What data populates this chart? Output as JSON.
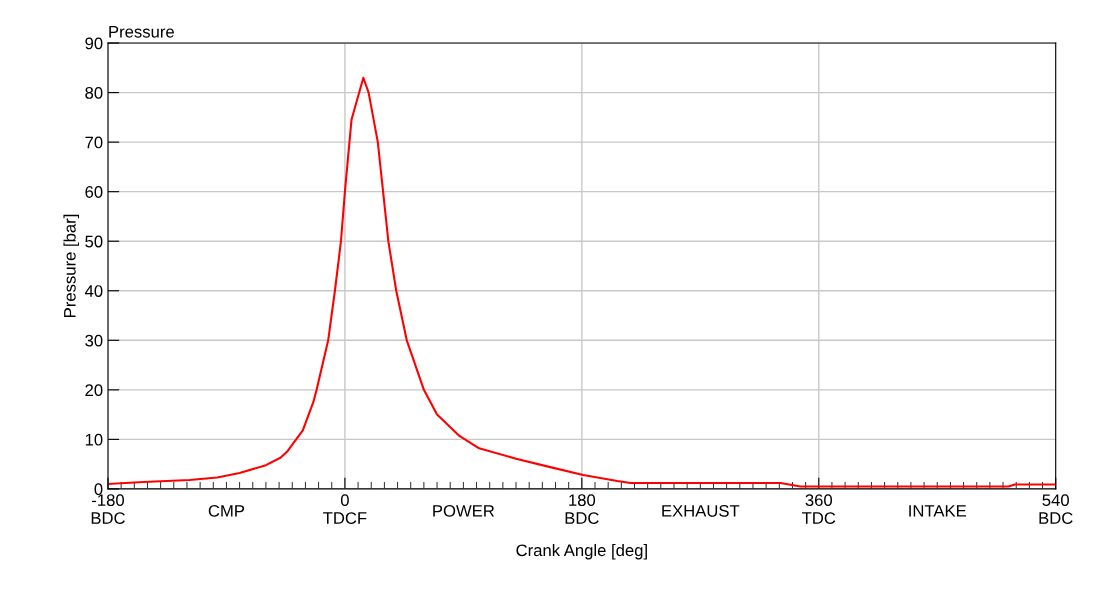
{
  "chart_data": {
    "type": "line",
    "title": "Pressure",
    "xlabel": "Crank Angle [deg]",
    "ylabel": "Pressure [bar]",
    "annotations": [
      "CMP",
      "POWER",
      "EXHAUST",
      "INTAKE"
    ],
    "series": [
      {
        "color": "#ff0000",
        "x": [
          -180,
          -153,
          -118,
          -97,
          -80,
          -60,
          -49,
          -44,
          -32,
          -24,
          -21.5,
          -12.7,
          -7.6,
          -3,
          0,
          5,
          14,
          18,
          25,
          29,
          33,
          39,
          47,
          60,
          70,
          87,
          102,
          130,
          156,
          181,
          207,
          217,
          331,
          346,
          504,
          509,
          540
        ],
        "values": [
          1.0,
          1.4,
          1.8,
          2.3,
          3.2,
          4.8,
          6.3,
          7.5,
          11.8,
          17.5,
          20,
          30,
          40,
          50,
          60,
          74.5,
          83,
          80,
          70,
          60,
          50,
          40,
          30,
          20,
          15,
          10.7,
          8.2,
          6.1,
          4.4,
          2.8,
          1.6,
          1.2,
          1.2,
          0.5,
          0.5,
          0.9,
          0.9
        ]
      }
    ],
    "xlim": [
      -180,
      540
    ],
    "ylim": [
      0,
      90
    ],
    "xticks": [
      {
        "value": -180,
        "label": "-180\nBDC"
      },
      {
        "value": 0,
        "label": "0\nTDCF"
      },
      {
        "value": 180,
        "label": "180\nBDC"
      },
      {
        "value": 360,
        "label": "360\nTDC"
      },
      {
        "value": 540,
        "label": "540\nBDC"
      },
      {
        "value": -170,
        "label": null
      },
      {
        "value": -160,
        "label": null
      },
      {
        "value": -150,
        "label": null
      },
      {
        "value": -140,
        "label": null
      },
      {
        "value": -130,
        "label": null
      },
      {
        "value": -120,
        "label": null
      },
      {
        "value": -110,
        "label": null
      },
      {
        "value": -100,
        "label": null
      },
      {
        "value": -90,
        "label": null
      },
      {
        "value": -80,
        "label": null
      },
      {
        "value": -70,
        "label": null
      },
      {
        "value": -60,
        "label": null
      },
      {
        "value": -50,
        "label": null
      },
      {
        "value": -40,
        "label": null
      },
      {
        "value": -30,
        "label": null
      },
      {
        "value": -20,
        "label": null
      },
      {
        "value": -10,
        "label": null
      },
      {
        "value": 10,
        "label": null
      },
      {
        "value": 20,
        "label": null
      },
      {
        "value": 30,
        "label": null
      },
      {
        "value": 40,
        "label": null
      },
      {
        "value": 50,
        "label": null
      },
      {
        "value": 60,
        "label": null
      },
      {
        "value": 70,
        "label": null
      },
      {
        "value": 80,
        "label": null
      },
      {
        "value": 90,
        "label": null
      },
      {
        "value": 100,
        "label": null
      },
      {
        "value": 110,
        "label": null
      },
      {
        "value": 120,
        "label": null
      },
      {
        "value": 130,
        "label": null
      },
      {
        "value": 140,
        "label": null
      },
      {
        "value": 150,
        "label": null
      },
      {
        "value": 160,
        "label": null
      },
      {
        "value": 170,
        "label": null
      },
      {
        "value": 190,
        "label": null
      },
      {
        "value": 200,
        "label": null
      },
      {
        "value": 210,
        "label": null
      },
      {
        "value": 220,
        "label": null
      },
      {
        "value": 230,
        "label": null
      },
      {
        "value": 240,
        "label": null
      },
      {
        "value": 250,
        "label": null
      },
      {
        "value": 260,
        "label": null
      },
      {
        "value": 270,
        "label": null
      },
      {
        "value": 280,
        "label": null
      },
      {
        "value": 290,
        "label": null
      },
      {
        "value": 300,
        "label": null
      },
      {
        "value": 310,
        "label": null
      },
      {
        "value": 320,
        "label": null
      },
      {
        "value": 330,
        "label": null
      },
      {
        "value": 340,
        "label": null
      },
      {
        "value": 350,
        "label": null
      },
      {
        "value": 370,
        "label": null
      },
      {
        "value": 380,
        "label": null
      },
      {
        "value": 390,
        "label": null
      },
      {
        "value": 400,
        "label": null
      },
      {
        "value": 410,
        "label": null
      },
      {
        "value": 420,
        "label": null
      },
      {
        "value": 430,
        "label": null
      },
      {
        "value": 440,
        "label": null
      },
      {
        "value": 450,
        "label": null
      },
      {
        "value": 460,
        "label": null
      },
      {
        "value": 470,
        "label": null
      },
      {
        "value": 480,
        "label": null
      },
      {
        "value": 490,
        "label": null
      },
      {
        "value": 500,
        "label": null
      },
      {
        "value": 510,
        "label": null
      },
      {
        "value": 520,
        "label": null
      },
      {
        "value": 530,
        "label": null
      }
    ],
    "yticks": [
      0,
      10,
      20,
      30,
      40,
      50,
      60,
      70,
      80,
      90
    ],
    "grid": true,
    "marker": "none",
    "line_style": "solid"
  }
}
